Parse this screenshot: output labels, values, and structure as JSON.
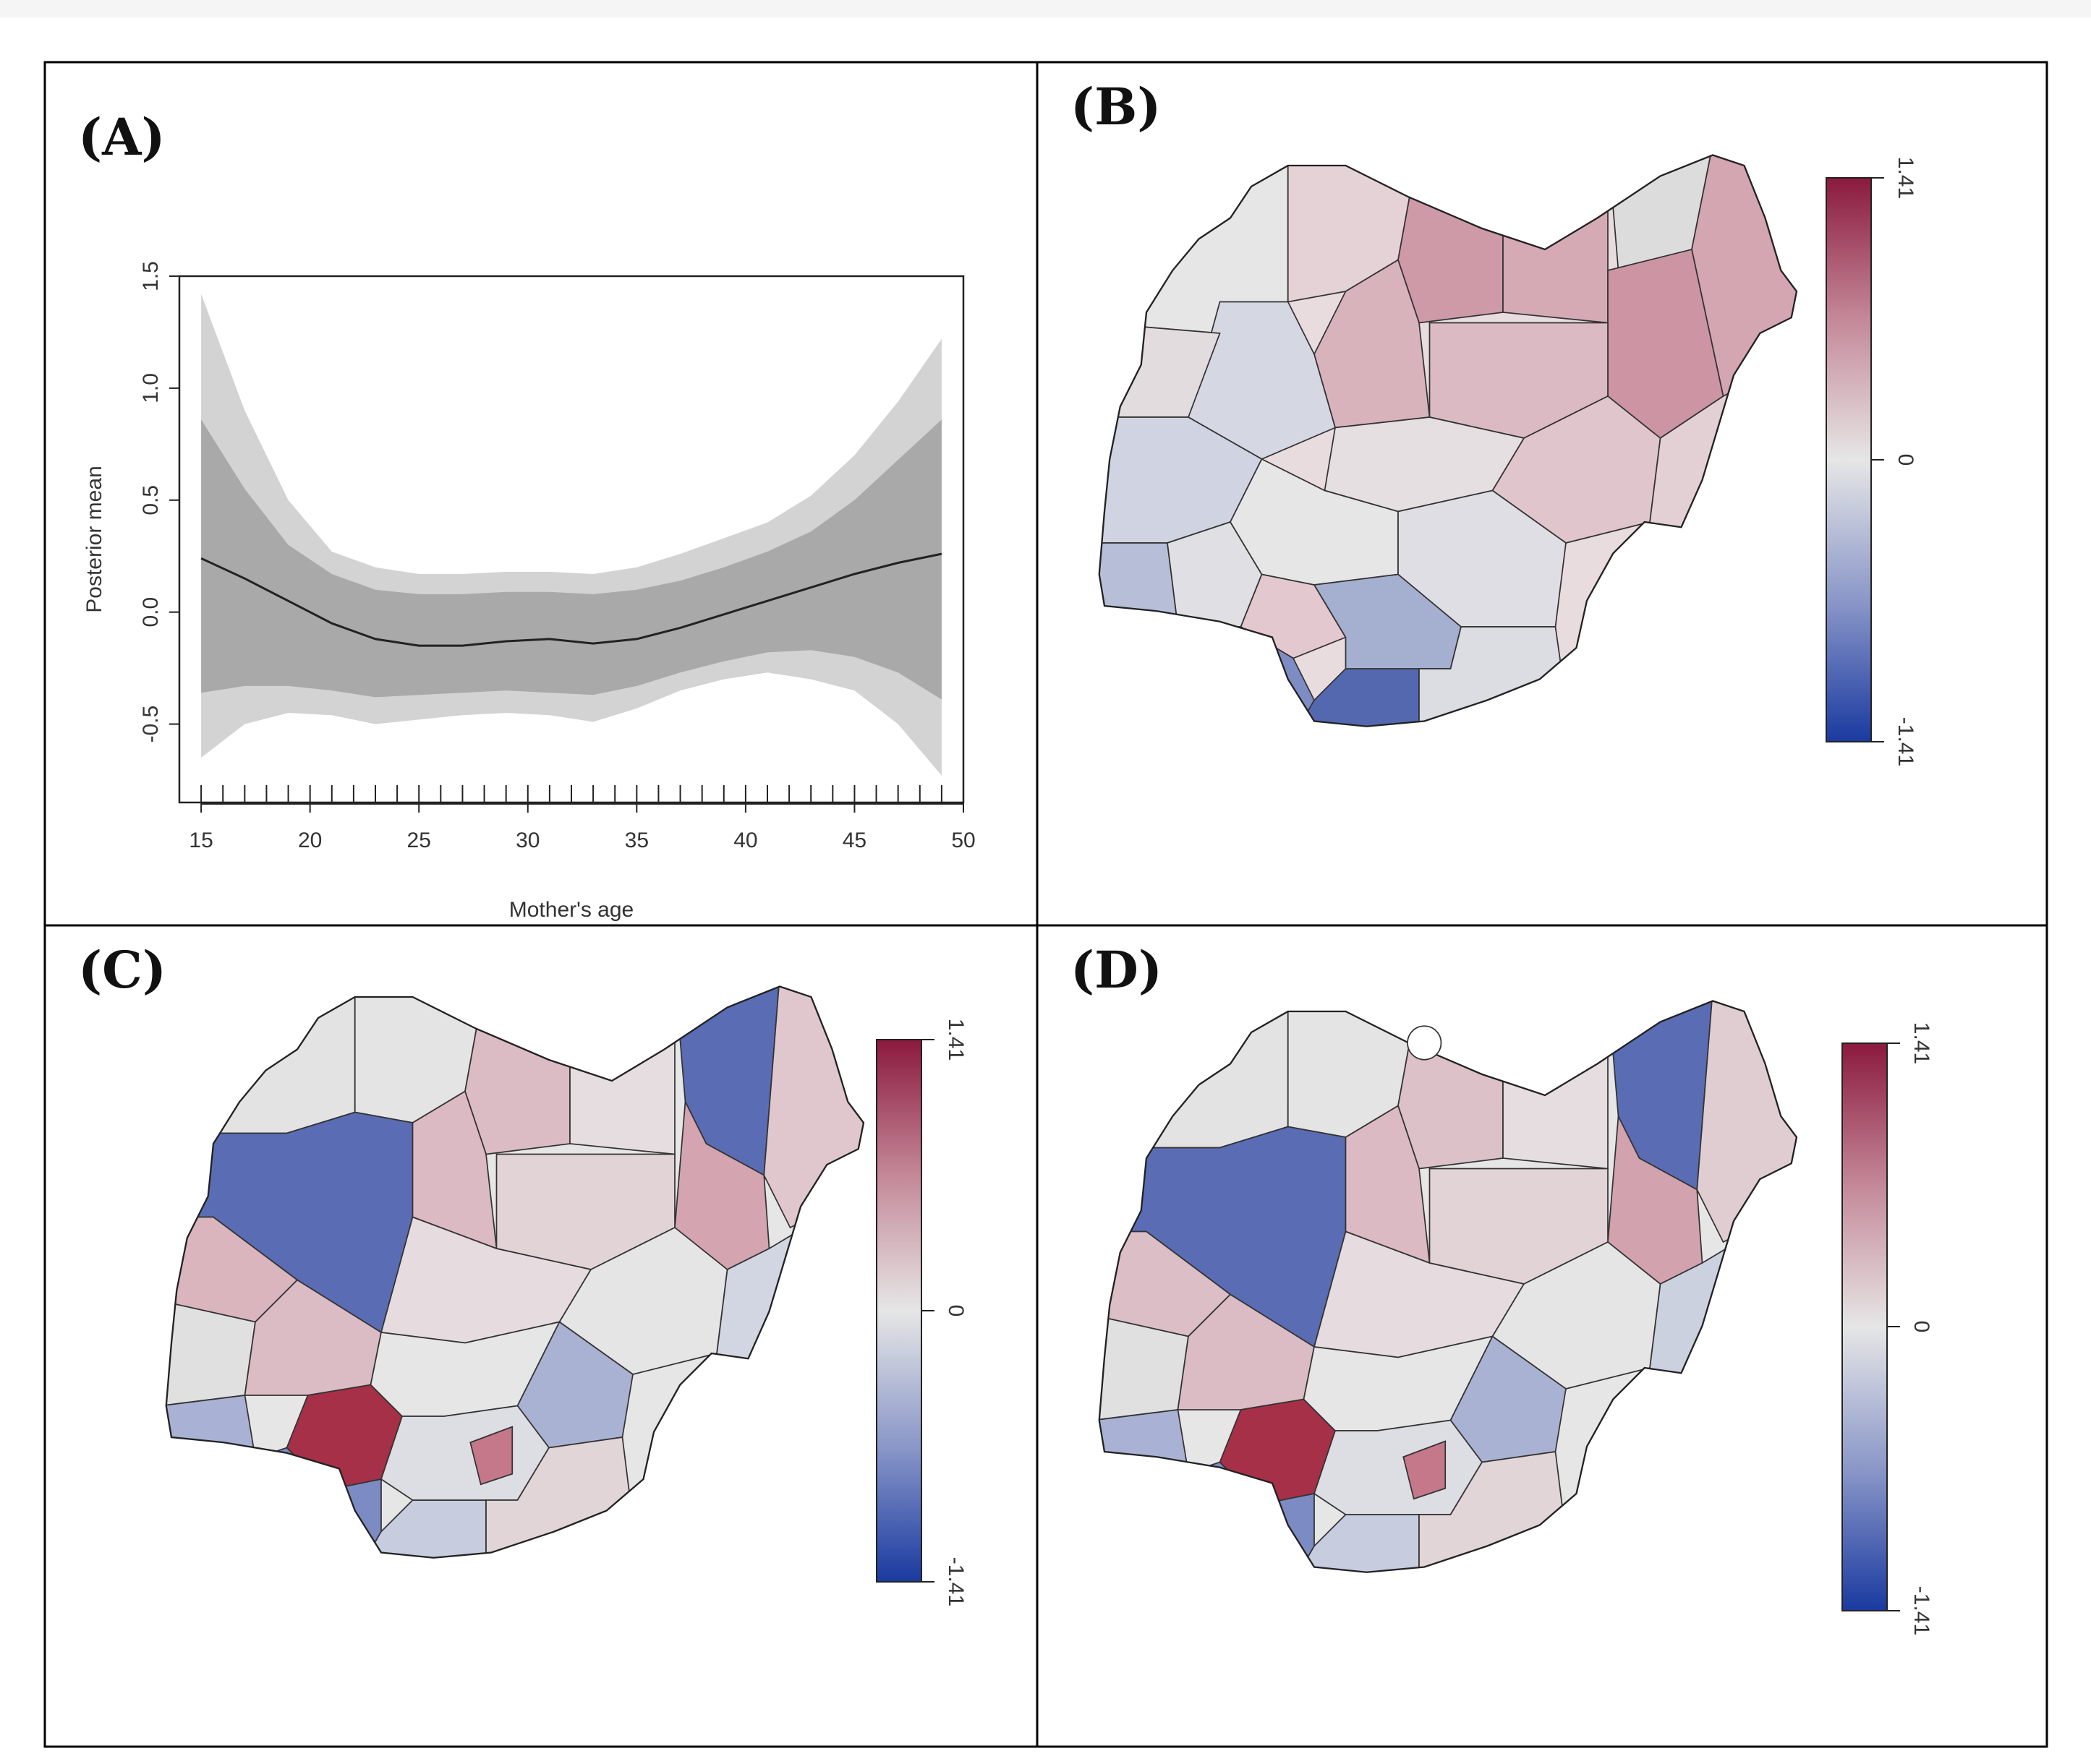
{
  "figure": {
    "panels": [
      {
        "id": "A",
        "label": "(A)"
      },
      {
        "id": "B",
        "label": "(B)"
      },
      {
        "id": "C",
        "label": "(C)"
      },
      {
        "id": "D",
        "label": "(D)"
      }
    ]
  },
  "colors": {
    "band_outer": "#d3d3d3",
    "band_inner": "#a9a9a9",
    "line": "#222222",
    "map_low": "#2040a0",
    "map_mid": "#e6e6e6",
    "map_high": "#a01c40",
    "frame": "#000000"
  },
  "legend": {
    "max_label": "1.41",
    "mid_label": "0",
    "min_label": "-1.41",
    "min": -1.41,
    "max": 1.41
  },
  "chart_data": [
    {
      "panel": "A",
      "type": "area",
      "xlabel": "Mother's age",
      "ylabel": "Posterior mean",
      "xlim": [
        14,
        50
      ],
      "ylim": [
        -0.85,
        1.5
      ],
      "xticks": [
        15,
        20,
        25,
        30,
        35,
        40,
        45,
        50
      ],
      "yticks": [
        -0.5,
        0.0,
        0.5,
        1.0,
        1.5
      ],
      "xtick_labels": [
        "15",
        "20",
        "25",
        "30",
        "35",
        "40",
        "45",
        "50"
      ],
      "ytick_labels": [
        "-0.5",
        "0.0",
        "0.5",
        "1.0",
        "1.5"
      ],
      "rug": [
        15,
        16,
        17,
        18,
        19,
        20,
        21,
        22,
        23,
        24,
        25,
        26,
        27,
        28,
        29,
        30,
        31,
        32,
        33,
        34,
        35,
        36,
        37,
        38,
        39,
        40,
        41,
        42,
        43,
        44,
        45,
        46,
        47,
        48,
        49
      ],
      "x": [
        15,
        17,
        19,
        21,
        23,
        25,
        27,
        29,
        31,
        33,
        35,
        37,
        39,
        41,
        43,
        45,
        47,
        49
      ],
      "series": [
        {
          "name": "posterior mean",
          "values": [
            0.24,
            0.15,
            0.05,
            -0.05,
            -0.12,
            -0.15,
            -0.15,
            -0.13,
            -0.12,
            -0.14,
            -0.12,
            -0.07,
            -0.01,
            0.05,
            0.11,
            0.17,
            0.22,
            0.26
          ]
        },
        {
          "name": "outer upper",
          "values": [
            1.42,
            0.9,
            0.5,
            0.27,
            0.2,
            0.17,
            0.17,
            0.18,
            0.18,
            0.17,
            0.2,
            0.26,
            0.33,
            0.4,
            0.52,
            0.7,
            0.94,
            1.22
          ]
        },
        {
          "name": "outer lower",
          "values": [
            -0.65,
            -0.5,
            -0.45,
            -0.46,
            -0.5,
            -0.48,
            -0.46,
            -0.45,
            -0.46,
            -0.49,
            -0.43,
            -0.35,
            -0.3,
            -0.27,
            -0.3,
            -0.35,
            -0.5,
            -0.73
          ]
        },
        {
          "name": "inner upper",
          "values": [
            0.86,
            0.55,
            0.3,
            0.17,
            0.1,
            0.08,
            0.08,
            0.09,
            0.09,
            0.08,
            0.1,
            0.14,
            0.2,
            0.27,
            0.36,
            0.5,
            0.68,
            0.86
          ]
        },
        {
          "name": "inner lower",
          "values": [
            -0.36,
            -0.33,
            -0.33,
            -0.35,
            -0.38,
            -0.37,
            -0.36,
            -0.35,
            -0.36,
            -0.37,
            -0.33,
            -0.27,
            -0.22,
            -0.18,
            -0.17,
            -0.2,
            -0.27,
            -0.39
          ]
        }
      ]
    }
  ]
}
